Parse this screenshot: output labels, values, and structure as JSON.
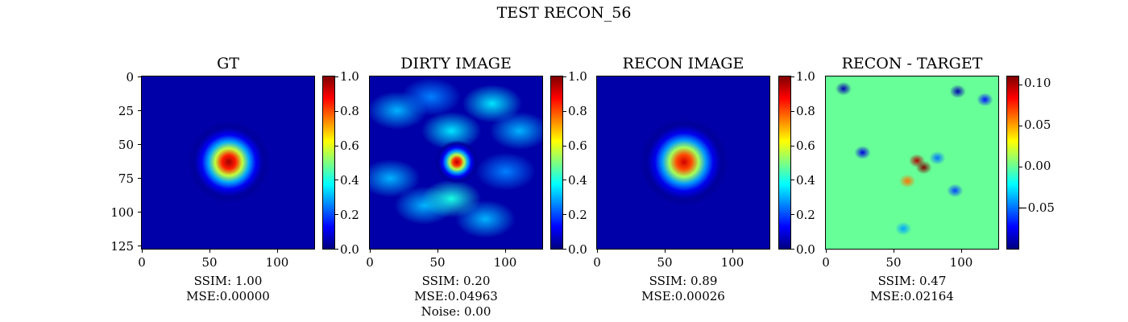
{
  "figure": {
    "title": "TEST RECON_56"
  },
  "colors": {
    "jet": [
      "#00007f",
      "#0000ff",
      "#007fff",
      "#00ffff",
      "#7fff7f",
      "#ffff00",
      "#ff7f00",
      "#ff0000",
      "#7f0000"
    ]
  },
  "chart_data": [
    {
      "type": "heatmap",
      "title": "GT",
      "xticks": [
        "0",
        "50",
        "100"
      ],
      "yticks": [
        "0",
        "25",
        "50",
        "75",
        "100",
        "125"
      ],
      "xlim": [
        0,
        127
      ],
      "ylim": [
        127,
        0
      ],
      "colorbar": {
        "min": 0.0,
        "max": 1.0,
        "ticks": [
          "0.0",
          "0.2",
          "0.4",
          "0.6",
          "0.8",
          "1.0"
        ]
      },
      "blobs": [
        {
          "x": 64,
          "y": 63,
          "peak": 0.97,
          "sigma": 13
        }
      ],
      "metrics": [
        "SSIM: 1.00",
        "MSE:0.00000"
      ]
    },
    {
      "type": "heatmap",
      "title": "DIRTY IMAGE",
      "xticks": [
        "0",
        "50",
        "100"
      ],
      "xlim": [
        0,
        127
      ],
      "ylim": [
        127,
        0
      ],
      "colorbar": {
        "min": 0.0,
        "max": 1.0,
        "ticks": [
          "0.0",
          "0.2",
          "0.4",
          "0.6",
          "0.8",
          "1.0"
        ]
      },
      "blobs": [
        {
          "x": 64,
          "y": 63,
          "peak": 0.95,
          "sigma": 7
        }
      ],
      "metrics": [
        "SSIM: 0.20",
        "MSE:0.04963",
        "Noise: 0.00"
      ]
    },
    {
      "type": "heatmap",
      "title": "RECON IMAGE",
      "xticks": [
        "0",
        "50",
        "100"
      ],
      "xlim": [
        0,
        127
      ],
      "ylim": [
        127,
        0
      ],
      "colorbar": {
        "min": 0.0,
        "max": 1.0,
        "ticks": [
          "0.0",
          "0.2",
          "0.4",
          "0.6",
          "0.8",
          "1.0"
        ]
      },
      "blobs": [
        {
          "x": 64,
          "y": 63,
          "peak": 0.92,
          "sigma": 14
        }
      ],
      "metrics": [
        "SSIM: 0.89",
        "MSE:0.00026"
      ]
    },
    {
      "type": "heatmap",
      "title": "RECON - TARGET",
      "xticks": [
        "0",
        "50",
        "100"
      ],
      "xlim": [
        0,
        127
      ],
      "ylim": [
        127,
        0
      ],
      "colorbar": {
        "min": -0.1,
        "max": 0.11,
        "ticks": [
          "0.10",
          "0.05",
          "0.00",
          "−0.05"
        ]
      },
      "blobs": [
        {
          "x": 13,
          "y": 9,
          "value": -0.09
        },
        {
          "x": 97,
          "y": 11,
          "value": -0.09
        },
        {
          "x": 117,
          "y": 17,
          "value": -0.07
        },
        {
          "x": 27,
          "y": 56,
          "value": -0.08
        },
        {
          "x": 67,
          "y": 62,
          "value": 0.1
        },
        {
          "x": 72,
          "y": 67,
          "value": 0.11
        },
        {
          "x": 82,
          "y": 60,
          "value": -0.05
        },
        {
          "x": 60,
          "y": 77,
          "value": 0.06
        },
        {
          "x": 95,
          "y": 84,
          "value": -0.06
        },
        {
          "x": 57,
          "y": 112,
          "value": -0.04
        }
      ],
      "metrics": [
        "SSIM: 0.47",
        "MSE:0.02164"
      ]
    }
  ]
}
